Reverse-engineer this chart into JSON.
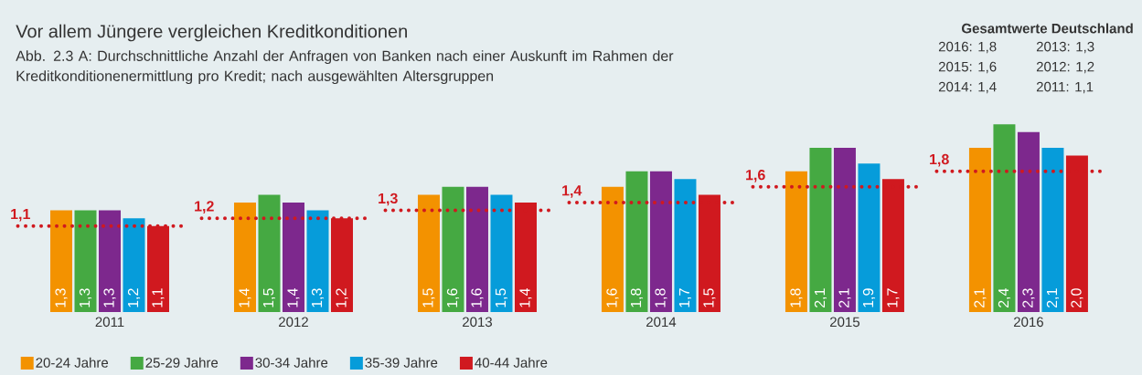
{
  "chart_data": {
    "type": "bar",
    "title": "Vor allem Jüngere vergleichen Kreditkonditionen",
    "subtitle": "Abb. 2.3 A: Durchschnittliche Anzahl der Anfragen von Banken nach einer Auskunft im Rahmen der Kreditkonditionenermittlung pro Kredit; nach ausgewählten Altersgruppen",
    "annotations": [
      "Gesamtwerte Deutschland",
      "2016: 1,8",
      "2013: 1,3",
      "2015: 1,6",
      "2012: 1,2",
      "2014: 1,4",
      "2011: 1,1"
    ],
    "categories": [
      "2011",
      "2012",
      "2013",
      "2014",
      "2015",
      "2016"
    ],
    "series": [
      {
        "name": "20-24 Jahre",
        "color": "#f39200",
        "values": [
          1.3,
          1.4,
          1.5,
          1.6,
          1.8,
          2.1
        ],
        "value_labels": [
          "1,3",
          "1,4",
          "1,5",
          "1,6",
          "1,8",
          "2,1"
        ]
      },
      {
        "name": "25-29 Jahre",
        "color": "#45a942",
        "values": [
          1.3,
          1.5,
          1.6,
          1.8,
          2.1,
          2.4
        ],
        "value_labels": [
          "1,3",
          "1,5",
          "1,6",
          "1,8",
          "2,1",
          "2,4"
        ]
      },
      {
        "name": "30-34 Jahre",
        "color": "#7d288d",
        "values": [
          1.3,
          1.4,
          1.6,
          1.8,
          2.1,
          2.3
        ],
        "value_labels": [
          "1,3",
          "1,4",
          "1,6",
          "1,8",
          "2,1",
          "2,3"
        ]
      },
      {
        "name": "35-39 Jahre",
        "color": "#069cda",
        "values": [
          1.2,
          1.3,
          1.5,
          1.7,
          1.9,
          2.1
        ],
        "value_labels": [
          "1,2",
          "1,3",
          "1,5",
          "1,7",
          "1,9",
          "2,1"
        ]
      },
      {
        "name": "40-44 Jahre",
        "color": "#d0191f",
        "values": [
          1.1,
          1.2,
          1.4,
          1.5,
          1.7,
          2.0
        ],
        "value_labels": [
          "1,1",
          "1,2",
          "1,4",
          "1,5",
          "1,7",
          "2,0"
        ]
      }
    ],
    "ref_lines": [
      {
        "axis": "y",
        "value": 1.1,
        "label": "1,1",
        "color": "#d0191f",
        "line_style": "dotted"
      },
      {
        "axis": "y",
        "value": 1.2,
        "label": "1,2",
        "color": "#d0191f",
        "line_style": "dotted"
      },
      {
        "axis": "y",
        "value": 1.3,
        "label": "1,3",
        "color": "#d0191f",
        "line_style": "dotted"
      },
      {
        "axis": "y",
        "value": 1.4,
        "label": "1,4",
        "color": "#d0191f",
        "line_style": "dotted"
      },
      {
        "axis": "y",
        "value": 1.6,
        "label": "1,6",
        "color": "#d0191f",
        "line_style": "dotted"
      },
      {
        "axis": "y",
        "value": 1.8,
        "label": "1,8",
        "color": "#d0191f",
        "line_style": "dotted"
      }
    ],
    "tick_labels": "x",
    "legend": "bottom left"
  }
}
